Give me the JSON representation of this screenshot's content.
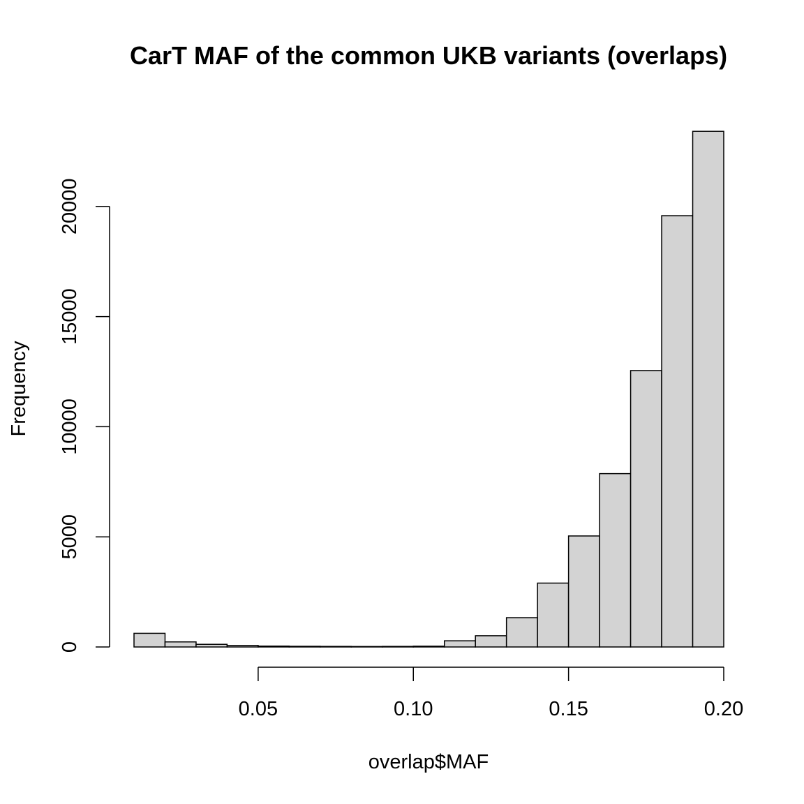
{
  "chart_data": {
    "type": "bar",
    "title": "CarT MAF of the common UKB variants (overlaps)",
    "xlabel": "overlap$MAF",
    "ylabel": "Frequency",
    "bin_edges": [
      0.01,
      0.02,
      0.03,
      0.04,
      0.05,
      0.06,
      0.07,
      0.08,
      0.09,
      0.1,
      0.11,
      0.12,
      0.13,
      0.14,
      0.15,
      0.16,
      0.17,
      0.18,
      0.19,
      0.2
    ],
    "values": [
      620,
      230,
      120,
      70,
      40,
      30,
      25,
      20,
      25,
      35,
      280,
      510,
      1330,
      2900,
      5040,
      7870,
      12550,
      19580,
      23410
    ],
    "xlim": [
      0.01,
      0.2
    ],
    "ylim": [
      0,
      23500
    ],
    "x_ticks": [
      0.05,
      0.1,
      0.15,
      0.2
    ],
    "x_tick_labels": [
      "0.05",
      "0.10",
      "0.15",
      "0.20"
    ],
    "y_ticks": [
      0,
      5000,
      10000,
      15000,
      20000
    ],
    "y_tick_labels": [
      "0",
      "5000",
      "10000",
      "15000",
      "20000"
    ],
    "bar_fill": "#d3d3d3",
    "bar_stroke": "#000000",
    "grid": false,
    "legend": "none"
  }
}
